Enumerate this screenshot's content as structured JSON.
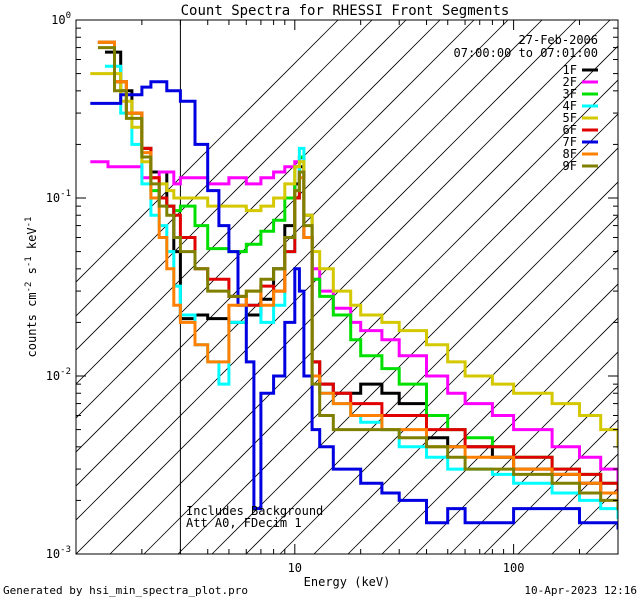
{
  "chart_data": {
    "type": "line",
    "title": "Count Spectra for RHESSI Front Segments",
    "xlabel": "Energy (keV)",
    "ylabel": "counts cm-2 s-1 keV-1",
    "xscale": "log",
    "yscale": "log",
    "xlim": [
      1.0,
      300.0
    ],
    "ylim": [
      0.001,
      1.0
    ],
    "x_ticks": [
      {
        "value": 10,
        "label": "10"
      },
      {
        "value": 100,
        "label": "100"
      }
    ],
    "y_ticks": [
      {
        "value": 0.001,
        "label": "10",
        "exp": "-3"
      },
      {
        "value": 0.01,
        "label": "10",
        "exp": "-2"
      },
      {
        "value": 0.1,
        "label": "10",
        "exp": "-1"
      },
      {
        "value": 1.0,
        "label": "10",
        "exp": "0"
      }
    ],
    "date": "27-Feb-2006",
    "time_range": "07:00:00 to 07:01:00",
    "shaded_region_max_kev": 3.0,
    "annotations": [
      "Includes Background",
      "Att A0, FDecim 1"
    ],
    "series": [
      {
        "name": "1F",
        "color": "#000000",
        "x": [
          1.4,
          1.6,
          1.8,
          2.0,
          2.2,
          2.4,
          2.6,
          2.8,
          3.0,
          3.5,
          4.0,
          5.0,
          6.0,
          7.0,
          8.0,
          9.0,
          10.0,
          10.5,
          11.0,
          12.0,
          13.0,
          15.0,
          18.0,
          20.0,
          25.0,
          30.0,
          40.0,
          50.0,
          60.0,
          80.0,
          100.0,
          150.0,
          200.0,
          250.0,
          300.0
        ],
        "values": [
          0.66,
          0.4,
          0.3,
          0.19,
          0.14,
          0.14,
          0.09,
          0.05,
          0.021,
          0.022,
          0.021,
          0.02,
          0.022,
          0.027,
          0.04,
          0.07,
          0.12,
          0.15,
          0.06,
          0.012,
          0.009,
          0.008,
          0.008,
          0.009,
          0.008,
          0.007,
          0.0045,
          0.004,
          0.004,
          0.0035,
          0.003,
          0.0028,
          0.0025,
          0.0022,
          0.002
        ]
      },
      {
        "name": "2F",
        "color": "#ff00ff",
        "x": [
          1.2,
          1.4,
          1.6,
          1.8,
          2.0,
          2.2,
          2.4,
          2.6,
          2.8,
          3.0,
          3.5,
          4.0,
          5.0,
          6.0,
          7.0,
          8.0,
          9.0,
          10.0,
          10.5,
          11.0,
          12.0,
          13.0,
          15.0,
          18.0,
          20.0,
          25.0,
          30.0,
          40.0,
          50.0,
          60.0,
          80.0,
          100.0,
          150.0,
          200.0,
          250.0,
          300.0
        ],
        "values": [
          0.16,
          0.15,
          0.15,
          0.15,
          0.13,
          0.13,
          0.14,
          0.14,
          0.12,
          0.13,
          0.13,
          0.12,
          0.13,
          0.12,
          0.13,
          0.14,
          0.15,
          0.16,
          0.17,
          0.08,
          0.04,
          0.03,
          0.024,
          0.02,
          0.018,
          0.016,
          0.013,
          0.01,
          0.008,
          0.007,
          0.006,
          0.005,
          0.004,
          0.0035,
          0.003,
          0.0025
        ]
      },
      {
        "name": "3F",
        "color": "#00e000",
        "x": [
          1.3,
          1.5,
          1.7,
          2.0,
          2.2,
          2.4,
          2.6,
          2.8,
          3.0,
          3.5,
          4.0,
          5.0,
          6.0,
          7.0,
          8.0,
          9.0,
          10.0,
          10.5,
          11.0,
          12.0,
          13.0,
          15.0,
          18.0,
          20.0,
          25.0,
          30.0,
          40.0,
          50.0,
          60.0,
          80.0,
          100.0,
          150.0,
          200.0,
          250.0,
          300.0
        ],
        "values": [
          0.75,
          0.45,
          0.3,
          0.17,
          0.11,
          0.1,
          0.09,
          0.085,
          0.09,
          0.07,
          0.052,
          0.05,
          0.055,
          0.065,
          0.075,
          0.1,
          0.15,
          0.17,
          0.08,
          0.035,
          0.028,
          0.022,
          0.016,
          0.013,
          0.011,
          0.009,
          0.006,
          0.005,
          0.0045,
          0.004,
          0.0035,
          0.003,
          0.0028,
          0.0025,
          0.0022
        ]
      },
      {
        "name": "4F",
        "color": "#00ffff",
        "x": [
          1.4,
          1.6,
          1.8,
          2.0,
          2.2,
          2.4,
          2.6,
          2.8,
          3.0,
          3.5,
          4.0,
          4.5,
          5.0,
          6.0,
          7.0,
          8.0,
          9.0,
          10.0,
          10.5,
          11.0,
          12.0,
          13.0,
          15.0,
          18.0,
          20.0,
          25.0,
          30.0,
          40.0,
          50.0,
          60.0,
          80.0,
          100.0,
          150.0,
          200.0,
          250.0,
          300.0
        ],
        "values": [
          0.55,
          0.3,
          0.2,
          0.12,
          0.08,
          0.07,
          0.05,
          0.032,
          0.022,
          0.015,
          0.012,
          0.009,
          0.02,
          0.025,
          0.02,
          0.025,
          0.05,
          0.1,
          0.19,
          0.06,
          0.01,
          0.008,
          0.007,
          0.006,
          0.0055,
          0.005,
          0.004,
          0.0035,
          0.003,
          0.003,
          0.0028,
          0.0025,
          0.0022,
          0.002,
          0.0018,
          0.0016
        ]
      },
      {
        "name": "5F",
        "color": "#d4c800",
        "x": [
          1.2,
          1.4,
          1.6,
          1.8,
          2.0,
          2.2,
          2.4,
          2.6,
          2.8,
          3.0,
          3.5,
          4.0,
          5.0,
          6.0,
          7.0,
          8.0,
          9.0,
          10.0,
          10.5,
          11.0,
          12.0,
          13.0,
          15.0,
          18.0,
          20.0,
          25.0,
          30.0,
          40.0,
          50.0,
          60.0,
          80.0,
          100.0,
          150.0,
          200.0,
          250.0,
          300.0
        ],
        "values": [
          0.5,
          0.5,
          0.35,
          0.25,
          0.16,
          0.13,
          0.12,
          0.11,
          0.1,
          0.1,
          0.1,
          0.09,
          0.09,
          0.085,
          0.09,
          0.1,
          0.12,
          0.15,
          0.16,
          0.08,
          0.05,
          0.04,
          0.03,
          0.025,
          0.022,
          0.02,
          0.018,
          0.015,
          0.012,
          0.01,
          0.009,
          0.008,
          0.007,
          0.006,
          0.005,
          0.004
        ]
      },
      {
        "name": "6F",
        "color": "#e00000",
        "x": [
          1.3,
          1.5,
          1.7,
          2.0,
          2.2,
          2.4,
          2.6,
          2.8,
          3.0,
          3.5,
          4.0,
          5.0,
          6.0,
          7.0,
          8.0,
          9.0,
          10.0,
          10.5,
          11.0,
          12.0,
          13.0,
          15.0,
          18.0,
          20.0,
          25.0,
          30.0,
          40.0,
          50.0,
          60.0,
          80.0,
          100.0,
          150.0,
          200.0,
          250.0,
          300.0
        ],
        "values": [
          0.75,
          0.45,
          0.3,
          0.19,
          0.13,
          0.1,
          0.09,
          0.08,
          0.06,
          0.04,
          0.035,
          0.028,
          0.025,
          0.032,
          0.03,
          0.05,
          0.1,
          0.14,
          0.06,
          0.012,
          0.009,
          0.008,
          0.007,
          0.007,
          0.006,
          0.006,
          0.005,
          0.005,
          0.004,
          0.004,
          0.0035,
          0.003,
          0.0028,
          0.0025,
          0.0022
        ]
      },
      {
        "name": "7F",
        "color": "#0000e0",
        "x": [
          1.2,
          1.4,
          1.6,
          1.8,
          2.0,
          2.2,
          2.4,
          2.6,
          2.8,
          3.0,
          3.5,
          4.0,
          4.5,
          5.0,
          5.5,
          6.0,
          6.5,
          7.0,
          8.0,
          9.0,
          10.0,
          10.5,
          11.0,
          12.0,
          13.0,
          15.0,
          18.0,
          20.0,
          25.0,
          30.0,
          40.0,
          50.0,
          60.0,
          80.0,
          100.0,
          150.0,
          200.0,
          250.0,
          300.0
        ],
        "values": [
          0.34,
          0.34,
          0.38,
          0.38,
          0.42,
          0.45,
          0.45,
          0.4,
          0.4,
          0.35,
          0.2,
          0.11,
          0.07,
          0.05,
          0.025,
          0.012,
          0.0018,
          0.008,
          0.01,
          0.02,
          0.04,
          0.03,
          0.01,
          0.005,
          0.004,
          0.003,
          0.003,
          0.0025,
          0.0022,
          0.002,
          0.0015,
          0.0018,
          0.0015,
          0.0015,
          0.0018,
          0.0018,
          0.0015,
          0.0015,
          0.0014
        ]
      },
      {
        "name": "8F",
        "color": "#ff8000",
        "x": [
          1.3,
          1.5,
          1.7,
          2.0,
          2.2,
          2.4,
          2.6,
          2.8,
          3.0,
          3.5,
          4.0,
          5.0,
          6.0,
          7.0,
          8.0,
          9.0,
          10.0,
          10.5,
          11.0,
          12.0,
          13.0,
          15.0,
          18.0,
          20.0,
          25.0,
          30.0,
          40.0,
          50.0,
          60.0,
          80.0,
          100.0,
          150.0,
          200.0,
          250.0,
          300.0
        ],
        "values": [
          0.75,
          0.45,
          0.3,
          0.18,
          0.1,
          0.06,
          0.04,
          0.025,
          0.02,
          0.015,
          0.012,
          0.025,
          0.03,
          0.025,
          0.03,
          0.06,
          0.11,
          0.13,
          0.06,
          0.01,
          0.008,
          0.007,
          0.006,
          0.006,
          0.005,
          0.005,
          0.004,
          0.004,
          0.0035,
          0.0035,
          0.003,
          0.0028,
          0.0025,
          0.0022,
          0.002
        ]
      },
      {
        "name": "9F",
        "color": "#808000",
        "x": [
          1.3,
          1.5,
          1.7,
          2.0,
          2.2,
          2.4,
          2.6,
          2.8,
          3.0,
          3.5,
          4.0,
          5.0,
          6.0,
          7.0,
          8.0,
          9.0,
          10.0,
          10.5,
          11.0,
          12.0,
          13.0,
          15.0,
          18.0,
          20.0,
          25.0,
          30.0,
          40.0,
          50.0,
          60.0,
          80.0,
          100.0,
          150.0,
          200.0,
          250.0,
          300.0
        ],
        "values": [
          0.7,
          0.4,
          0.28,
          0.17,
          0.12,
          0.09,
          0.08,
          0.06,
          0.05,
          0.04,
          0.03,
          0.028,
          0.03,
          0.035,
          0.04,
          0.06,
          0.11,
          0.14,
          0.07,
          0.009,
          0.006,
          0.005,
          0.005,
          0.005,
          0.005,
          0.0045,
          0.004,
          0.0035,
          0.003,
          0.003,
          0.0028,
          0.0025,
          0.0022,
          0.002,
          0.0018
        ]
      }
    ]
  },
  "footer": {
    "generated_by": "Generated by hsi_min_spectra_plot.pro",
    "timestamp": "10-Apr-2023 12:16"
  }
}
